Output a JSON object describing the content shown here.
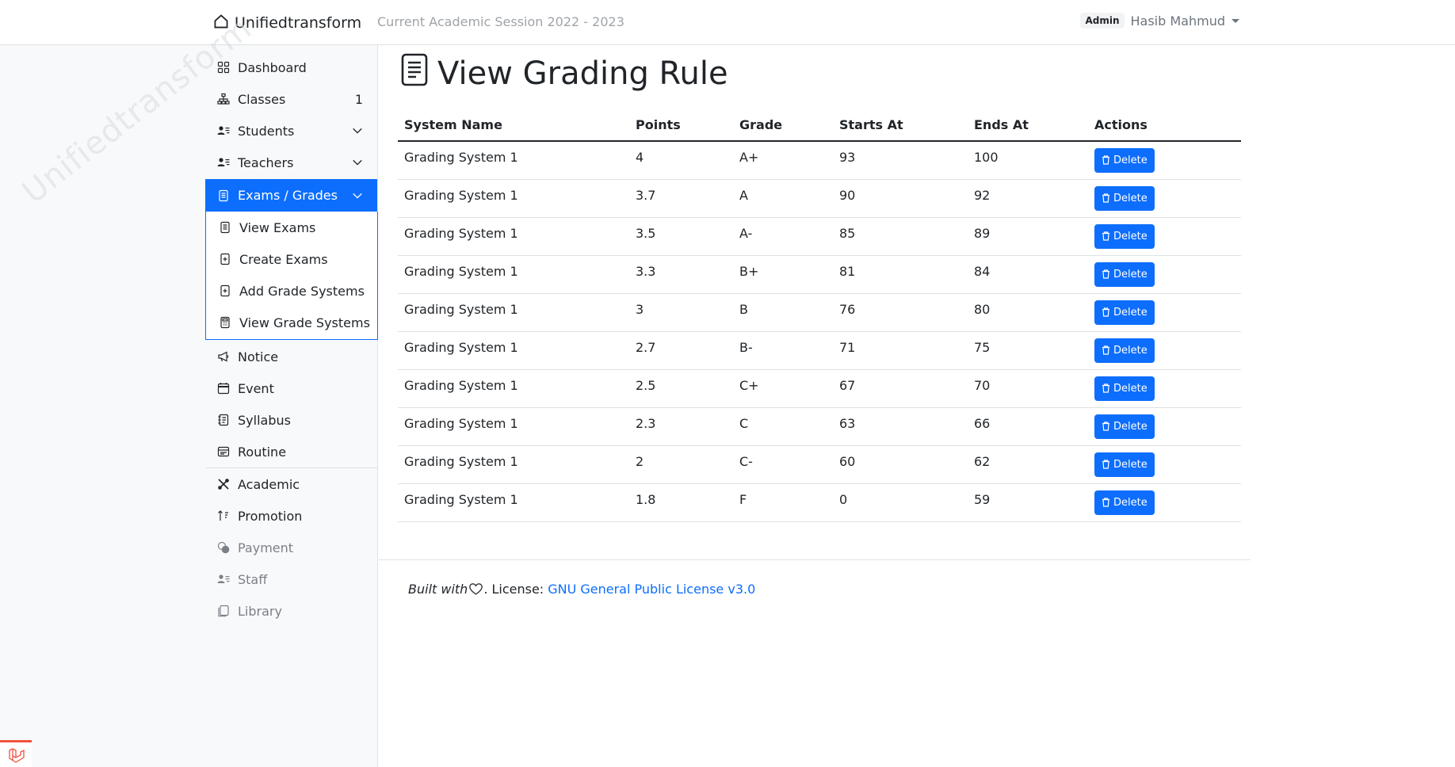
{
  "header": {
    "brand": "Unifiedtransform",
    "session": "Current Academic Session 2022 - 2023",
    "role": "Admin",
    "user_name": "Hasib Mahmud"
  },
  "sidebar": {
    "watermark": "Unifiedtransform",
    "items": [
      {
        "label": "Dashboard",
        "icon": "grid-icon"
      },
      {
        "label": "Classes",
        "icon": "diagram-icon",
        "count": "1"
      },
      {
        "label": "Students",
        "icon": "person-lines-icon"
      },
      {
        "label": "Teachers",
        "icon": "person-lines-icon"
      },
      {
        "label": "Exams / Grades",
        "icon": "file-text-icon"
      },
      {
        "label": "Notice",
        "icon": "megaphone-icon"
      },
      {
        "label": "Event",
        "icon": "calendar-icon"
      },
      {
        "label": "Syllabus",
        "icon": "journal-text-icon"
      },
      {
        "label": "Routine",
        "icon": "calendar-week-icon"
      },
      {
        "label": "Academic",
        "icon": "tools-icon"
      },
      {
        "label": "Promotion",
        "icon": "sort-icon"
      },
      {
        "label": "Payment",
        "icon": "coins-icon"
      },
      {
        "label": "Staff",
        "icon": "person-lines-icon"
      },
      {
        "label": "Library",
        "icon": "journals-icon"
      }
    ],
    "exams_submenu": [
      {
        "label": "View Exams",
        "icon": "file-text-icon"
      },
      {
        "label": "Create Exams",
        "icon": "file-plus-icon"
      },
      {
        "label": "Add Grade Systems",
        "icon": "file-plus-icon"
      },
      {
        "label": "View Grade Systems",
        "icon": "calculator-icon"
      }
    ]
  },
  "main": {
    "title": "View Grading Rule",
    "table": {
      "headers": [
        "System Name",
        "Points",
        "Grade",
        "Starts At",
        "Ends At",
        "Actions"
      ],
      "delete_label": "Delete",
      "rows": [
        [
          "Grading System 1",
          "4",
          "A+",
          "93",
          "100"
        ],
        [
          "Grading System 1",
          "3.7",
          "A",
          "90",
          "92"
        ],
        [
          "Grading System 1",
          "3.5",
          "A-",
          "85",
          "89"
        ],
        [
          "Grading System 1",
          "3.3",
          "B+",
          "81",
          "84"
        ],
        [
          "Grading System 1",
          "3",
          "B",
          "76",
          "80"
        ],
        [
          "Grading System 1",
          "2.7",
          "B-",
          "71",
          "75"
        ],
        [
          "Grading System 1",
          "2.5",
          "C+",
          "67",
          "70"
        ],
        [
          "Grading System 1",
          "2.3",
          "C",
          "63",
          "66"
        ],
        [
          "Grading System 1",
          "2",
          "C-",
          "60",
          "62"
        ],
        [
          "Grading System 1",
          "1.8",
          "F",
          "0",
          "59"
        ]
      ]
    }
  },
  "footer": {
    "built_with": "Built with",
    "license_label": ". License:",
    "license_link": "GNU General Public License v3.0"
  },
  "colors": {
    "accent": "#0d6efd",
    "sidebar_bg": "#f8f9fa",
    "laravel": "#f05340"
  }
}
